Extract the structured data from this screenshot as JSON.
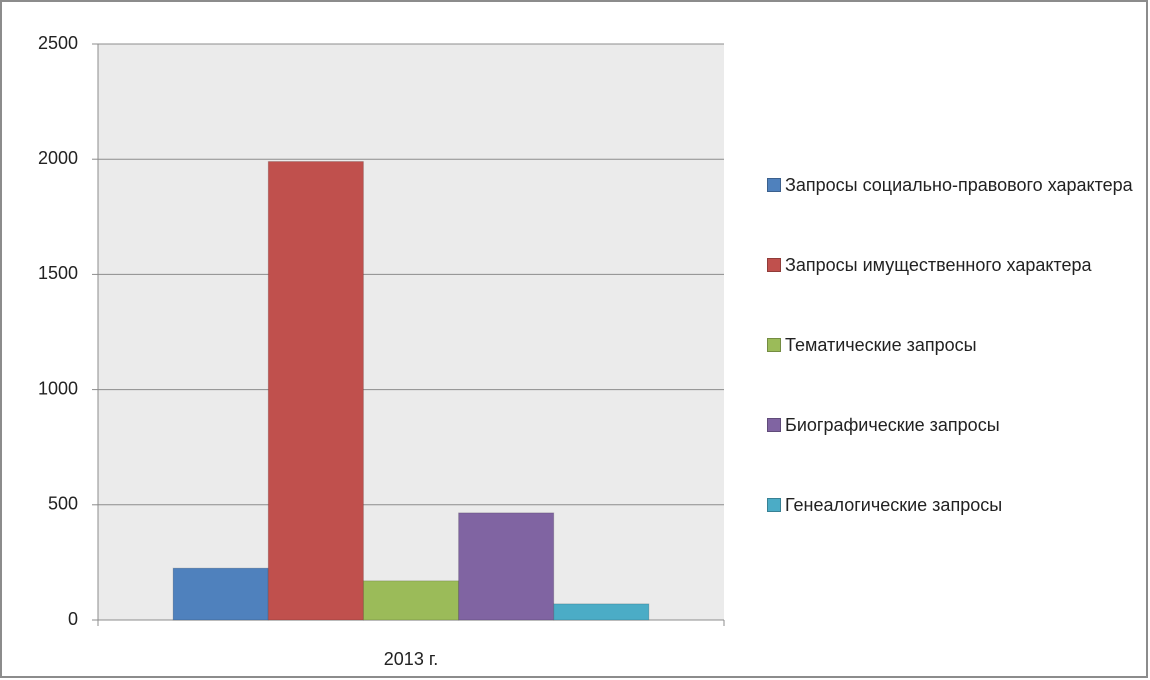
{
  "chart_data": {
    "type": "bar",
    "categories": [
      "2013 г."
    ],
    "series": [
      {
        "name": "Запросы социально-правового характера",
        "color": "#4f81bd",
        "values": [
          225
        ]
      },
      {
        "name": "Запросы имущественного характера",
        "color": "#c0504d",
        "values": [
          1990
        ]
      },
      {
        "name": "Тематические запросы",
        "color": "#9bbb59",
        "values": [
          170
        ]
      },
      {
        "name": "Биографические запросы",
        "color": "#8064a2",
        "values": [
          465
        ]
      },
      {
        "name": "Генеалогические запросы",
        "color": "#4bacc6",
        "values": [
          70
        ]
      }
    ],
    "ylim": [
      0,
      2500
    ],
    "yticks": [
      0,
      500,
      1000,
      1500,
      2000,
      2500
    ],
    "grid": true,
    "legend": "right"
  }
}
